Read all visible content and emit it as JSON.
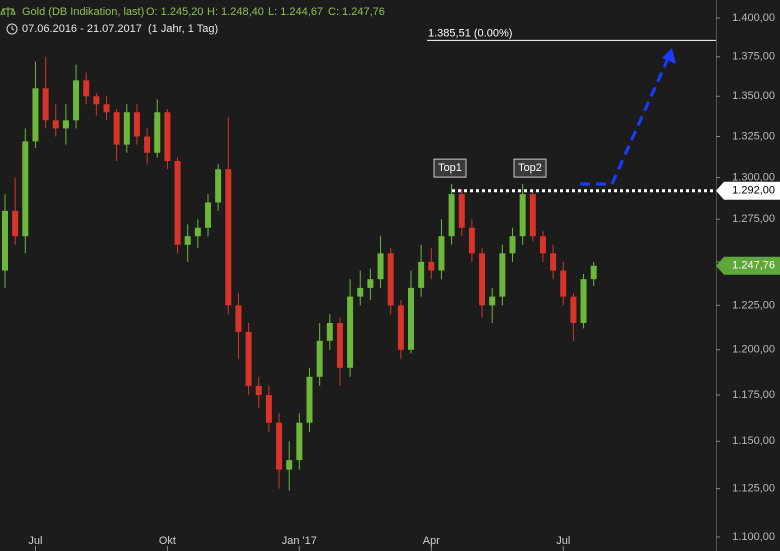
{
  "chart_data": {
    "type": "candlestick",
    "title": "Gold (DB Indikation, last)",
    "ohlc_labels": [
      "O: 1.245,20",
      "H: 1.248,40",
      "L: 1.244,67",
      "C: 1.247,76"
    ],
    "subtitle": "07.06.2016 - 21.07.2017",
    "period": "(1 Jahr, 1 Tag)",
    "categories": [
      null,
      null,
      null,
      "Jul",
      null,
      null,
      null,
      null,
      null,
      null,
      null,
      null,
      null,
      null,
      null,
      null,
      "Okt",
      null,
      null,
      null,
      null,
      null,
      null,
      null,
      null,
      null,
      null,
      null,
      null,
      "Jan '17",
      null,
      null,
      null,
      null,
      null,
      null,
      null,
      null,
      null,
      null,
      null,
      null,
      "Apr",
      null,
      null,
      null,
      null,
      null,
      null,
      null,
      null,
      null,
      null,
      null,
      null,
      "Jul",
      null,
      null,
      null
    ],
    "open": [
      1245,
      1280,
      1265,
      1322,
      1355,
      1335,
      1330,
      1335,
      1360,
      1350,
      1345,
      1340,
      1320,
      1340,
      1325,
      1315,
      1340,
      1310,
      1260,
      1265,
      1270,
      1285,
      1305,
      1225,
      1210,
      1180,
      1175,
      1160,
      1135,
      1140,
      1160,
      1185,
      1205,
      1215,
      1190,
      1230,
      1235,
      1240,
      1255,
      1225,
      1200,
      1235,
      1250,
      1245,
      1265,
      1290,
      1270,
      1255,
      1225,
      1230,
      1255,
      1265,
      1290,
      1265,
      1255,
      1245,
      1230,
      1215,
      1240
    ],
    "high": [
      1290,
      1300,
      1330,
      1372,
      1375,
      1345,
      1345,
      1370,
      1365,
      1352,
      1350,
      1342,
      1345,
      1345,
      1330,
      1348,
      1342,
      1312,
      1272,
      1275,
      1290,
      1308,
      1337,
      1232,
      1215,
      1185,
      1180,
      1165,
      1150,
      1165,
      1190,
      1215,
      1220,
      1218,
      1240,
      1245,
      1246,
      1265,
      1258,
      1228,
      1245,
      1260,
      1258,
      1275,
      1296,
      1293,
      1275,
      1258,
      1235,
      1260,
      1270,
      1296,
      1293,
      1268,
      1260,
      1250,
      1232,
      1243,
      1250
    ],
    "low": [
      1235,
      1260,
      1255,
      1318,
      1330,
      1325,
      1320,
      1330,
      1345,
      1338,
      1335,
      1310,
      1315,
      1320,
      1308,
      1312,
      1305,
      1255,
      1250,
      1258,
      1265,
      1280,
      1220,
      1195,
      1175,
      1168,
      1155,
      1125,
      1124,
      1135,
      1155,
      1180,
      1200,
      1180,
      1185,
      1225,
      1228,
      1235,
      1220,
      1195,
      1198,
      1230,
      1240,
      1240,
      1260,
      1265,
      1250,
      1218,
      1215,
      1225,
      1250,
      1260,
      1262,
      1250,
      1240,
      1225,
      1205,
      1212,
      1236
    ],
    "close": [
      1280,
      1265,
      1322,
      1355,
      1335,
      1330,
      1335,
      1360,
      1350,
      1345,
      1340,
      1320,
      1340,
      1325,
      1315,
      1340,
      1310,
      1260,
      1265,
      1270,
      1285,
      1305,
      1225,
      1210,
      1180,
      1175,
      1160,
      1135,
      1140,
      1160,
      1185,
      1205,
      1215,
      1190,
      1230,
      1235,
      1240,
      1255,
      1225,
      1200,
      1235,
      1250,
      1245,
      1265,
      1290,
      1270,
      1255,
      1225,
      1230,
      1255,
      1265,
      1290,
      1265,
      1255,
      1245,
      1230,
      1215,
      1240,
      1247.76
    ],
    "up_color": "#6cb83a",
    "down_color": "#d8342a",
    "log_scale": true,
    "ylim": [
      1100,
      1400
    ],
    "yticks": [
      {
        "value": 1100,
        "label": "1.100,00"
      },
      {
        "value": 1125,
        "label": "1.125,00"
      },
      {
        "value": 1150,
        "label": "1.150,00"
      },
      {
        "value": 1175,
        "label": "1.175,00"
      },
      {
        "value": 1200,
        "label": "1.200,00"
      },
      {
        "value": 1225,
        "label": "1.225,00"
      },
      {
        "value": 1250,
        "label": "1.250,00"
      },
      {
        "value": 1275,
        "label": "1.275,00"
      },
      {
        "value": 1300,
        "label": "1.300,00"
      },
      {
        "value": 1325,
        "label": "1.325,00"
      },
      {
        "value": 1350,
        "label": "1.350,00"
      },
      {
        "value": 1375,
        "label": "1.375,00"
      },
      {
        "value": 1400,
        "label": "1.400,00"
      }
    ],
    "annotations": [
      "Top1",
      "Top2"
    ],
    "target": {
      "value": 1385.51,
      "label": "1.385,51 (0.00%)"
    },
    "resistance": {
      "value": 1292,
      "label": "1.292,00"
    },
    "last": {
      "value": 1247.76,
      "label": "1.247,76"
    }
  }
}
